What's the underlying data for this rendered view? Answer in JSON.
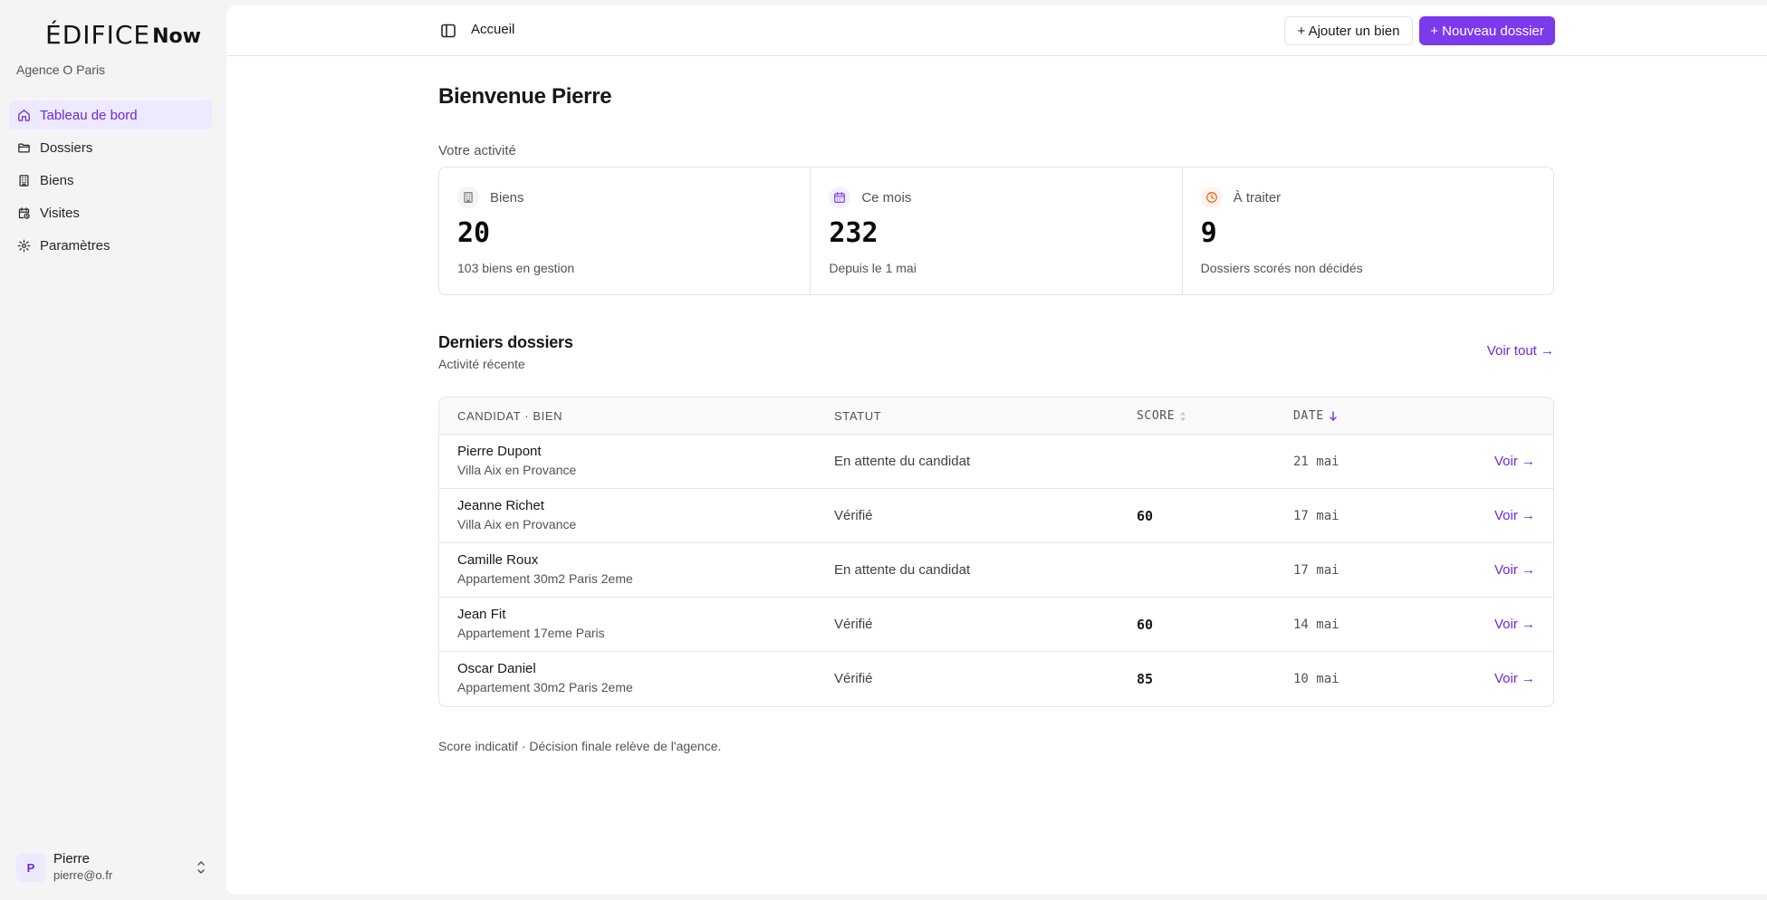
{
  "brand": {
    "logo_main": "ÉDIFICE",
    "logo_accent": "Now",
    "agency": "Agence O Paris"
  },
  "sidebar": {
    "items": [
      {
        "label": "Tableau de bord",
        "icon": "home-icon",
        "active": true
      },
      {
        "label": "Dossiers",
        "icon": "folder-icon",
        "active": false
      },
      {
        "label": "Biens",
        "icon": "building-icon",
        "active": false
      },
      {
        "label": "Visites",
        "icon": "calendar-clock-icon",
        "active": false
      },
      {
        "label": "Paramètres",
        "icon": "gear-icon",
        "active": false
      }
    ]
  },
  "user": {
    "initial": "P",
    "name": "Pierre",
    "email": "pierre@o.fr"
  },
  "topbar": {
    "breadcrumb": "Accueil",
    "add_property": "+ Ajouter un bien",
    "new_file": "+ Nouveau dossier"
  },
  "welcome": "Bienvenue Pierre",
  "activity": {
    "label": "Votre activité",
    "stats": [
      {
        "label": "Biens",
        "value": "20",
        "sub": "103 biens en gestion",
        "icon": "building-icon",
        "color": "#71717a"
      },
      {
        "label": "Ce mois",
        "value": "232",
        "sub": "Depuis le 1 mai",
        "icon": "calendar-icon",
        "color": "#7c3aed"
      },
      {
        "label": "À traiter",
        "value": "9",
        "sub": "Dossiers scorés non décidés",
        "icon": "clock-icon",
        "color": "#ea580c"
      }
    ]
  },
  "recent": {
    "title": "Derniers dossiers",
    "subtitle": "Activité récente",
    "see_all": "Voir tout →",
    "columns": {
      "candidate": "CANDIDAT · BIEN",
      "status": "STATUT",
      "score": "SCORE",
      "date": "DATE"
    },
    "rows": [
      {
        "name": "Pierre Dupont",
        "property": "Villa Aix en Provance",
        "status": "En attente du candidat",
        "score": "",
        "date": "21 mai",
        "action": "Voir →"
      },
      {
        "name": "Jeanne Richet",
        "property": "Villa Aix en Provance",
        "status": "Vérifié",
        "score": "60",
        "date": "17 mai",
        "action": "Voir →"
      },
      {
        "name": "Camille Roux",
        "property": "Appartement 30m2 Paris 2eme",
        "status": "En attente du candidat",
        "score": "",
        "date": "17 mai",
        "action": "Voir →"
      },
      {
        "name": "Jean Fit",
        "property": "Appartement 17eme Paris",
        "status": "Vérifié",
        "score": "60",
        "date": "14 mai",
        "action": "Voir →"
      },
      {
        "name": "Oscar Daniel",
        "property": "Appartement 30m2 Paris 2eme",
        "status": "Vérifié",
        "score": "85",
        "date": "10 mai",
        "action": "Voir →"
      }
    ]
  },
  "footer_note": "Score indicatif · Décision finale relève de l'agence."
}
